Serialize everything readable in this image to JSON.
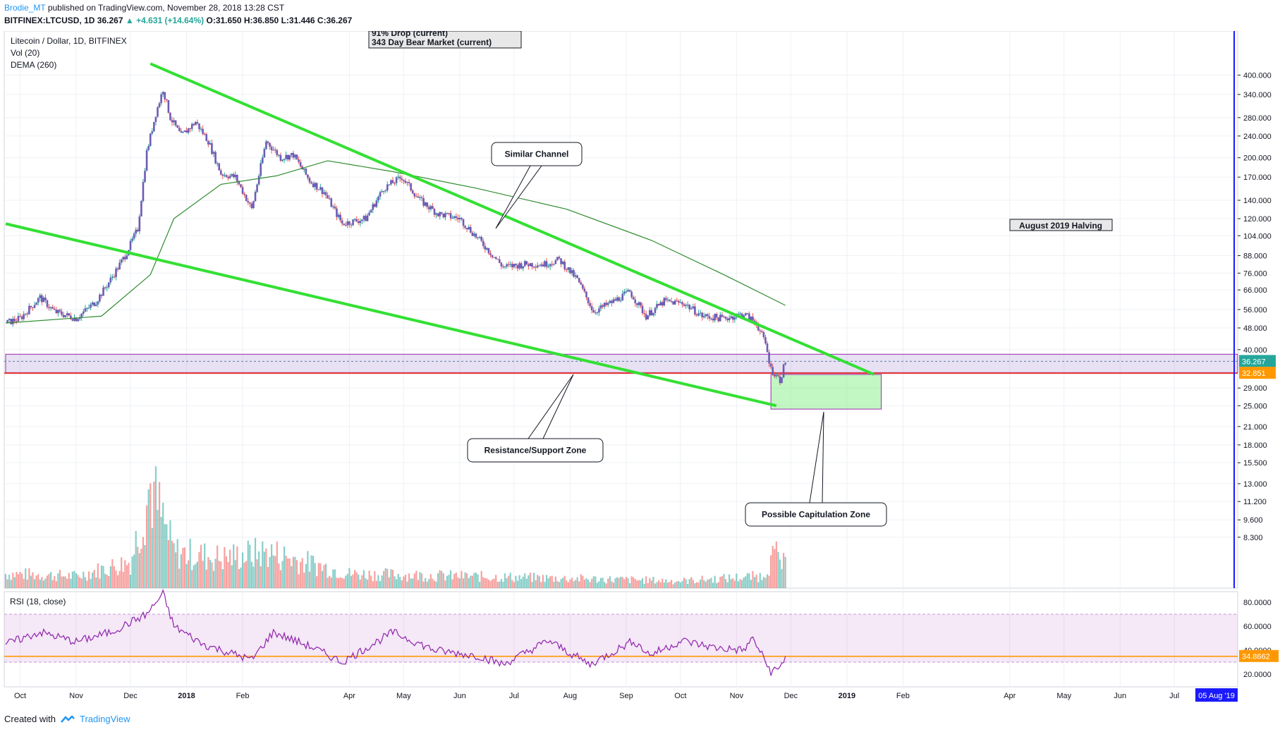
{
  "header": {
    "author": "Brodie_MT",
    "published": "published on TradingView.com, November 28, 2018 13:28 CST",
    "symbol": "BITFINEX:LTCUSD, 1D",
    "last": "36.267",
    "change": "+4.631 (+14.64%)",
    "ohlc": "O:31.650 H:36.850 L:31.446 C:36.267"
  },
  "footer": {
    "created_with": "Created with",
    "brand": "TradingView"
  },
  "chart_data": {
    "type": "candlestick",
    "title": "Litecoin / Dollar, 1D, BITFINEX",
    "indicators": [
      "Vol (20)",
      "DEMA (260)"
    ],
    "price_axis": {
      "scale": "log",
      "ticks": [
        "400.000",
        "340.000",
        "280.000",
        "240.000",
        "200.000",
        "170.000",
        "140.000",
        "120.000",
        "104.000",
        "88.000",
        "76.000",
        "66.000",
        "56.000",
        "48.000",
        "40.000",
        "36.267",
        "32.851",
        "29.000",
        "25.000",
        "21.000",
        "18.000",
        "15.500",
        "13.000",
        "11.200",
        "9.600",
        "8.300"
      ],
      "tick_values": [
        400,
        340,
        280,
        240,
        200,
        170,
        140,
        120,
        104,
        88,
        76,
        66,
        56,
        48,
        40,
        29,
        25,
        21,
        18,
        15.5,
        13,
        11.2,
        9.6,
        8.3
      ],
      "current_price": "36.267",
      "support_level": "32.851"
    },
    "time_axis": {
      "ticks": [
        "Oct",
        "Nov",
        "Dec",
        "2018",
        "Feb",
        "Apr",
        "May",
        "Jun",
        "Jul",
        "Aug",
        "Sep",
        "Oct",
        "Nov",
        "Dec",
        "2019",
        "Feb",
        "Apr",
        "May",
        "Jun",
        "Jul"
      ],
      "highlight": "05 Aug '19"
    },
    "price_path": [
      [
        "2017-09-23",
        50
      ],
      [
        "2017-10-01",
        52
      ],
      [
        "2017-10-12",
        62
      ],
      [
        "2017-10-20",
        55
      ],
      [
        "2017-11-01",
        52
      ],
      [
        "2017-11-12",
        60
      ],
      [
        "2017-11-20",
        72
      ],
      [
        "2017-11-28",
        88
      ],
      [
        "2017-12-05",
        110
      ],
      [
        "2017-12-10",
        210
      ],
      [
        "2017-12-15",
        290
      ],
      [
        "2017-12-19",
        355
      ],
      [
        "2017-12-23",
        280
      ],
      [
        "2017-12-29",
        240
      ],
      [
        "2018-01-06",
        270
      ],
      [
        "2018-01-13",
        230
      ],
      [
        "2018-01-20",
        175
      ],
      [
        "2018-01-28",
        170
      ],
      [
        "2018-02-06",
        130
      ],
      [
        "2018-02-14",
        230
      ],
      [
        "2018-02-22",
        200
      ],
      [
        "2018-03-01",
        205
      ],
      [
        "2018-03-10",
        165
      ],
      [
        "2018-03-18",
        150
      ],
      [
        "2018-03-28",
        115
      ],
      [
        "2018-04-10",
        120
      ],
      [
        "2018-04-20",
        155
      ],
      [
        "2018-04-30",
        170
      ],
      [
        "2018-05-10",
        140
      ],
      [
        "2018-05-20",
        125
      ],
      [
        "2018-06-01",
        120
      ],
      [
        "2018-06-12",
        100
      ],
      [
        "2018-06-25",
        80
      ],
      [
        "2018-07-08",
        82
      ],
      [
        "2018-07-18",
        82
      ],
      [
        "2018-07-26",
        85
      ],
      [
        "2018-08-05",
        72
      ],
      [
        "2018-08-14",
        55
      ],
      [
        "2018-08-25",
        60
      ],
      [
        "2018-09-03",
        65
      ],
      [
        "2018-09-12",
        53
      ],
      [
        "2018-09-22",
        60
      ],
      [
        "2018-10-03",
        59
      ],
      [
        "2018-10-13",
        53
      ],
      [
        "2018-10-25",
        52
      ],
      [
        "2018-11-05",
        54
      ],
      [
        "2018-11-12",
        50
      ],
      [
        "2018-11-17",
        42
      ],
      [
        "2018-11-20",
        34
      ],
      [
        "2018-11-25",
        31
      ],
      [
        "2018-11-28",
        36.267
      ]
    ],
    "dema_path": [
      [
        "2017-09-23",
        50
      ],
      [
        "2017-11-15",
        53
      ],
      [
        "2017-12-12",
        75
      ],
      [
        "2017-12-25",
        120
      ],
      [
        "2018-01-20",
        160
      ],
      [
        "2018-02-20",
        172
      ],
      [
        "2018-03-20",
        195
      ],
      [
        "2018-04-25",
        178
      ],
      [
        "2018-06-10",
        155
      ],
      [
        "2018-07-30",
        130
      ],
      [
        "2018-09-15",
        100
      ],
      [
        "2018-10-25",
        75
      ],
      [
        "2018-11-28",
        58
      ]
    ],
    "volume_path": [
      [
        "2017-09-23",
        0.12
      ],
      [
        "2017-11-01",
        0.1
      ],
      [
        "2017-12-01",
        0.22
      ],
      [
        "2017-12-12",
        0.85
      ],
      [
        "2017-12-25",
        0.3
      ],
      [
        "2018-01-20",
        0.25
      ],
      [
        "2018-02-15",
        0.3
      ],
      [
        "2018-04-01",
        0.12
      ],
      [
        "2018-06-01",
        0.1
      ],
      [
        "2018-08-01",
        0.08
      ],
      [
        "2018-10-01",
        0.06
      ],
      [
        "2018-11-15",
        0.1
      ],
      [
        "2018-11-22",
        0.28
      ],
      [
        "2018-11-28",
        0.18
      ]
    ],
    "rsi": {
      "label": "RSI (18, close)",
      "ticks": [
        "80.0000",
        "60.0000",
        "40.0000",
        "20.0000"
      ],
      "tick_values": [
        80,
        60,
        40,
        20
      ],
      "current": "34.8662",
      "band": [
        30,
        70
      ],
      "path": [
        [
          "2017-09-23",
          45
        ],
        [
          "2017-10-12",
          55
        ],
        [
          "2017-11-01",
          47
        ],
        [
          "2017-11-20",
          55
        ],
        [
          "2017-12-10",
          70
        ],
        [
          "2017-12-19",
          87
        ],
        [
          "2017-12-25",
          60
        ],
        [
          "2018-01-10",
          45
        ],
        [
          "2018-02-06",
          32
        ],
        [
          "2018-02-18",
          55
        ],
        [
          "2018-03-12",
          42
        ],
        [
          "2018-03-28",
          30
        ],
        [
          "2018-04-25",
          55
        ],
        [
          "2018-05-18",
          40
        ],
        [
          "2018-06-12",
          35
        ],
        [
          "2018-06-25",
          28
        ],
        [
          "2018-07-20",
          48
        ],
        [
          "2018-08-12",
          28
        ],
        [
          "2018-09-05",
          48
        ],
        [
          "2018-09-14",
          36
        ],
        [
          "2018-10-02",
          48
        ],
        [
          "2018-10-20",
          42
        ],
        [
          "2018-11-05",
          40
        ],
        [
          "2018-11-10",
          50
        ],
        [
          "2018-11-20",
          22
        ],
        [
          "2018-11-25",
          25
        ],
        [
          "2018-11-28",
          35
        ]
      ]
    },
    "channel_lines": [
      {
        "from": [
          "2017-09-23",
          115
        ],
        "to": [
          "2018-11-23",
          25
        ]
      },
      {
        "from": [
          "2017-12-12",
          440
        ],
        "to": [
          "2019-01-16",
          32.5
        ]
      }
    ],
    "zones": [
      {
        "name": "resistance_support",
        "from": "2017-09-23",
        "to": "2019-08-05",
        "low": 33,
        "high": 38.5
      },
      {
        "name": "capitulation",
        "from": "2018-11-20",
        "to": "2019-01-20",
        "low": 24.3,
        "high": 32.5
      }
    ],
    "annotations": {
      "drop": "91% Drop (current)",
      "bear": "343 Day Bear Market (current)",
      "halving": "August 2019 Halving",
      "similar_channel": "Similar Channel",
      "resistance": "Resistance/Support Zone",
      "capitulation": "Possible Capitulation Zone"
    },
    "colors": {
      "up": "#26a69a",
      "down": "#ef5350",
      "candle_body": "#6c5bb5",
      "channel": "#33e033",
      "dema": "#2e8b2e",
      "rsi": "#8e24aa",
      "support_line": "#e53935",
      "current_label": "#26a69a",
      "support_label": "#ff9800",
      "axis_marker": "#1a1aff"
    }
  }
}
